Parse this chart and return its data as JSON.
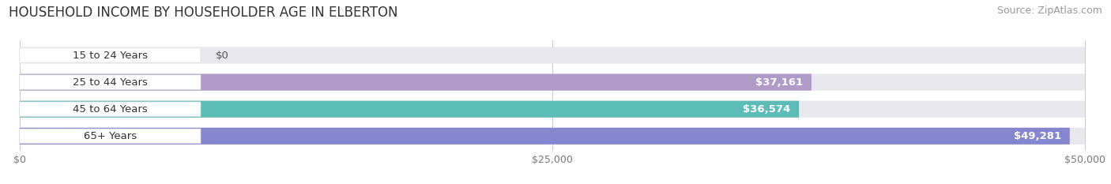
{
  "title": "HOUSEHOLD INCOME BY HOUSEHOLDER AGE IN ELBERTON",
  "source": "Source: ZipAtlas.com",
  "categories": [
    "15 to 24 Years",
    "25 to 44 Years",
    "45 to 64 Years",
    "65+ Years"
  ],
  "values": [
    0,
    37161,
    36574,
    49281
  ],
  "labels": [
    "$0",
    "$37,161",
    "$36,574",
    "$49,281"
  ],
  "bar_colors": [
    "#a8c4e0",
    "#b09ac8",
    "#5bbcb8",
    "#8585d0"
  ],
  "bar_bg_color": "#e8e8ee",
  "xlim": [
    0,
    50000
  ],
  "xticks": [
    0,
    25000,
    50000
  ],
  "xticklabels": [
    "$0",
    "$25,000",
    "$50,000"
  ],
  "background_color": "#ffffff",
  "title_fontsize": 12,
  "label_fontsize": 9.5,
  "tick_fontsize": 9,
  "source_fontsize": 9,
  "badge_color": "#ffffff",
  "badge_edge_color": "#dddddd"
}
